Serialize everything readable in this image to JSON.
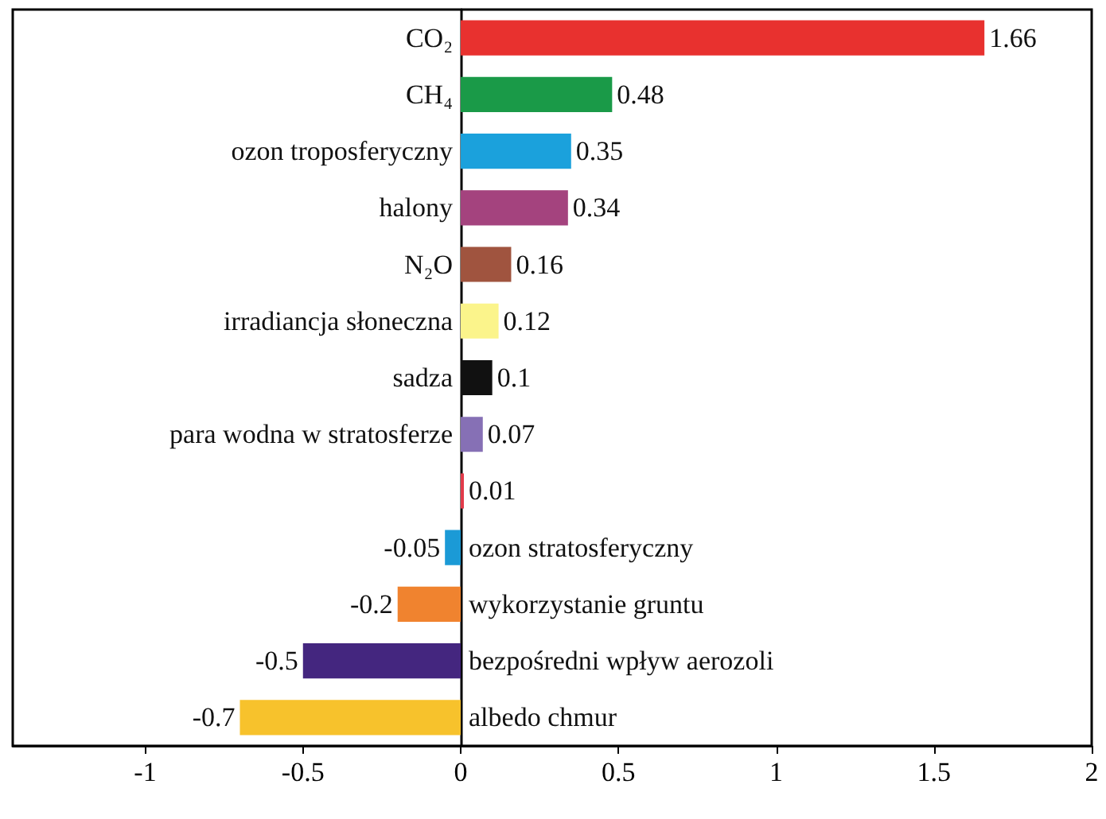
{
  "chart_data": {
    "type": "bar",
    "orientation": "horizontal",
    "data_labels": true,
    "categories": [
      "CO₂",
      "CH₄",
      "ozon troposferyczny",
      "halony",
      "N₂O",
      "irradiancja słoneczna",
      "sadza",
      "para wodna w stratosferze",
      null,
      "ozon stratosferyczny",
      "wykorzystanie gruntu",
      "bezpośredni wpływ aerozoli",
      "albedo chmur"
    ],
    "values": [
      1.66,
      0.48,
      0.35,
      0.34,
      0.16,
      0.12,
      0.1,
      0.07,
      0.01,
      -0.05,
      -0.2,
      -0.5,
      -0.7
    ],
    "colors": [
      "#e8312f",
      "#1a9a48",
      "#1ba1dc",
      "#a4437e",
      "#a0543f",
      "#fbf48b",
      "#111111",
      "#8670b5",
      "#e23a4a",
      "#1b9ad6",
      "#f0832f",
      "#44267f",
      "#f7c22c"
    ],
    "xlim": [
      -1.42,
      2
    ],
    "xticks": [
      -1,
      -0.5,
      0,
      0.5,
      1,
      1.5,
      2
    ]
  }
}
